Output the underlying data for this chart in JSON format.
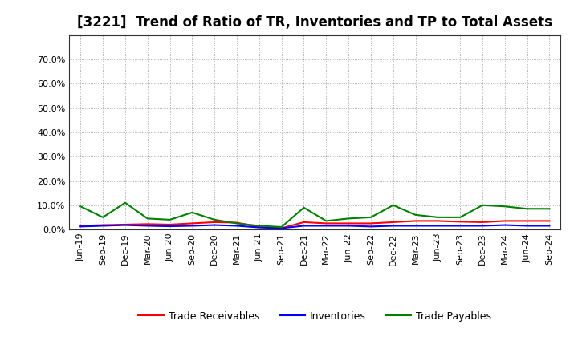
{
  "title": "[3221]  Trend of Ratio of TR, Inventories and TP to Total Assets",
  "x_labels": [
    "Jun-19",
    "Sep-19",
    "Dec-19",
    "Mar-20",
    "Jun-20",
    "Sep-20",
    "Dec-20",
    "Mar-21",
    "Jun-21",
    "Sep-21",
    "Dec-21",
    "Mar-22",
    "Jun-22",
    "Sep-22",
    "Dec-22",
    "Mar-23",
    "Jun-23",
    "Sep-23",
    "Dec-23",
    "Mar-24",
    "Jun-24",
    "Sep-24"
  ],
  "trade_receivables": [
    1.5,
    1.8,
    2.0,
    2.2,
    2.0,
    2.5,
    3.0,
    2.8,
    1.0,
    0.5,
    3.0,
    2.5,
    2.5,
    2.5,
    3.0,
    3.5,
    3.5,
    3.2,
    3.0,
    3.5,
    3.5,
    3.5
  ],
  "inventories": [
    1.2,
    1.5,
    1.8,
    1.5,
    1.3,
    1.5,
    1.8,
    1.5,
    0.8,
    0.5,
    1.5,
    1.5,
    1.5,
    1.2,
    1.5,
    1.5,
    1.5,
    1.5,
    1.5,
    1.8,
    1.5,
    1.5
  ],
  "trade_payables": [
    9.5,
    5.0,
    11.0,
    4.5,
    4.0,
    7.0,
    4.0,
    2.5,
    1.5,
    1.0,
    9.0,
    3.5,
    4.5,
    5.0,
    10.0,
    6.0,
    5.0,
    5.0,
    10.0,
    9.5,
    8.5,
    8.5
  ],
  "tr_color": "#ff0000",
  "inv_color": "#0000ff",
  "tp_color": "#008000",
  "ylim_max": 80.0,
  "yticks": [
    0.0,
    10.0,
    20.0,
    30.0,
    40.0,
    50.0,
    60.0,
    70.0
  ],
  "legend_labels": [
    "Trade Receivables",
    "Inventories",
    "Trade Payables"
  ],
  "background_color": "#ffffff",
  "grid_color": "#999999",
  "title_fontsize": 12,
  "tick_fontsize": 8,
  "legend_fontsize": 9
}
